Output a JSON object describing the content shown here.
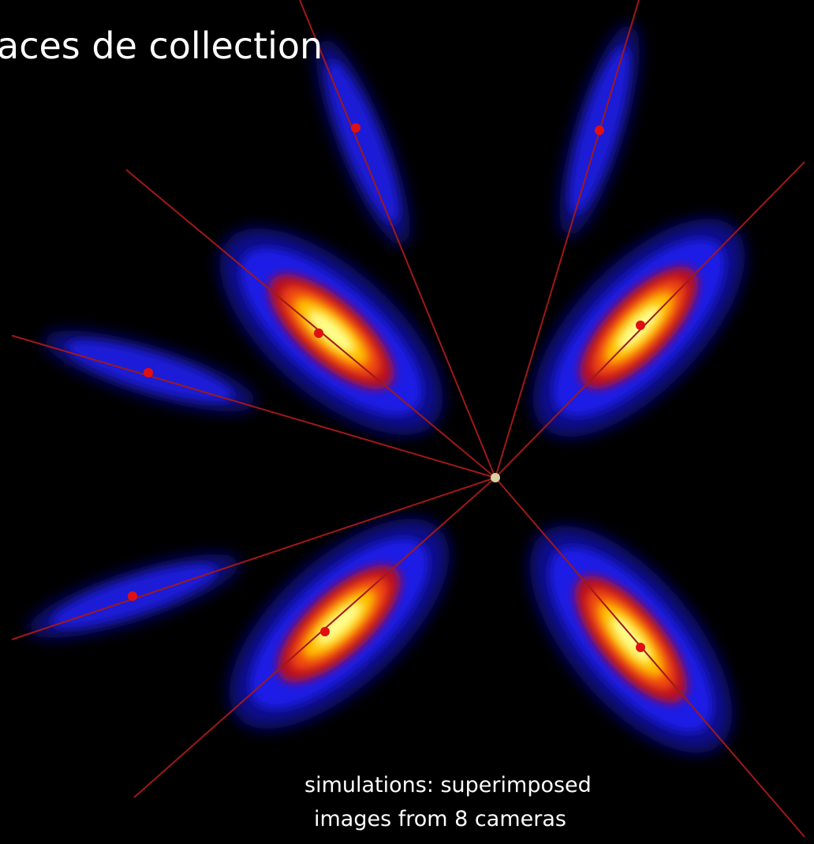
{
  "title": "aces de collection",
  "caption": [
    "simulations: superimposed",
    "images from 8 cameras"
  ]
}
